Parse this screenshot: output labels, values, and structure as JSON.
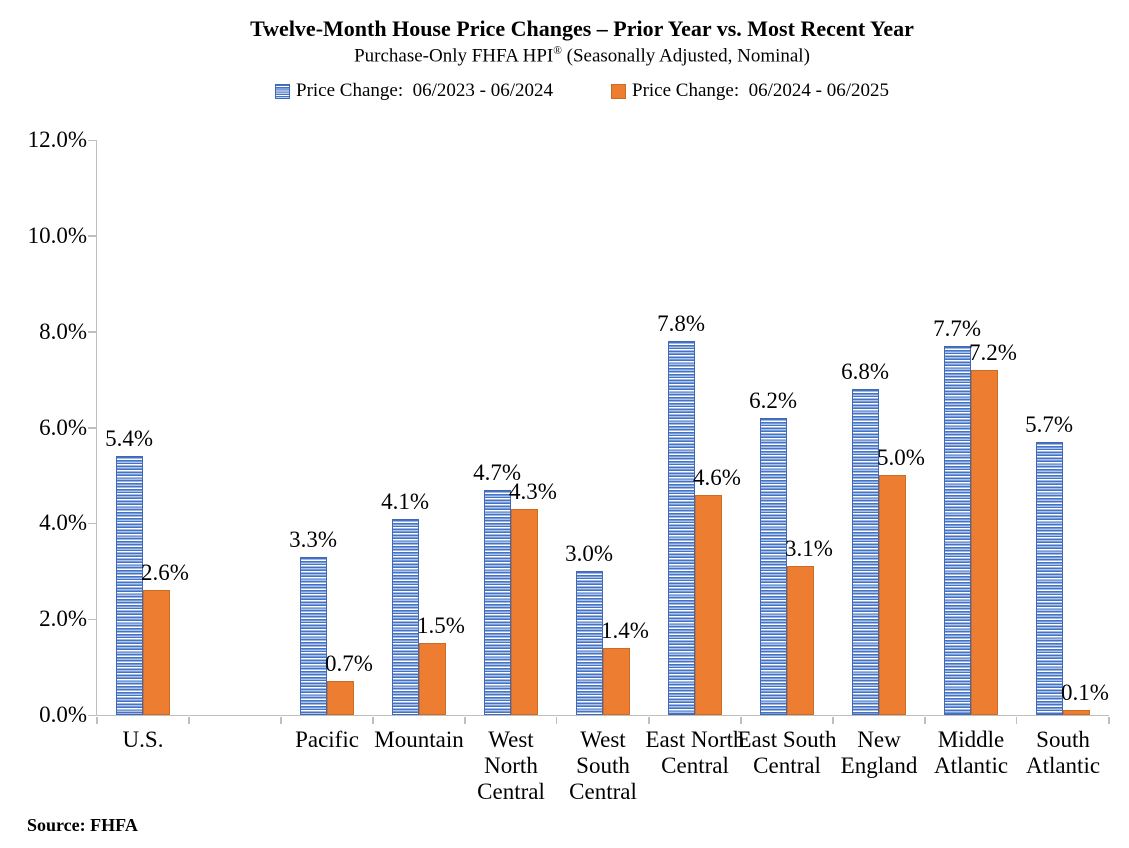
{
  "chart_data": {
    "type": "bar",
    "title": "Twelve-Month House Price Changes – Prior Year vs. Most Recent Year",
    "subtitle": "Purchase-Only FHFA HPI® (Seasonally Adjusted, Nominal)",
    "categories": [
      "U.S.",
      "",
      "Pacific",
      "Mountain",
      "West North Central",
      "West South Central",
      "East North Central",
      "East South Central",
      "New England",
      "Middle Atlantic",
      "South Atlantic"
    ],
    "category_display": [
      "U.S.",
      "",
      "Pacific",
      "Mountain",
      "West\nNorth\nCentral",
      "West\nSouth\nCentral",
      "East North\nCentral",
      "East South\nCentral",
      "New\nEngland",
      "Middle\nAtlantic",
      "South\nAtlantic"
    ],
    "series": [
      {
        "name": "Price Change:  06/2023 - 06/2024",
        "pattern": "horizontal-stripes",
        "color": "#4472C4",
        "values": [
          5.4,
          null,
          3.3,
          4.1,
          4.7,
          3.0,
          7.8,
          6.2,
          6.8,
          7.7,
          5.7
        ]
      },
      {
        "name": "Price Change:  06/2024 - 06/2025",
        "pattern": "solid",
        "color": "#ED7D31",
        "values": [
          2.6,
          null,
          0.7,
          1.5,
          4.3,
          1.4,
          4.6,
          3.1,
          5.0,
          7.2,
          0.1
        ]
      }
    ],
    "xlabel": "",
    "ylabel": "",
    "ylim": [
      0,
      12
    ],
    "ytick_step": 2,
    "ytick_suffix": "%",
    "data_label_suffix": "%",
    "grid": false,
    "legend_position": "top"
  },
  "colors": {
    "axis": "#BFBFBF",
    "prior_fill": "#4472C4",
    "prior_stripe_light": "#AEC5EA",
    "recent_fill": "#ED7D31",
    "text": "#000000"
  },
  "footer": {
    "source": "Source: FHFA"
  }
}
